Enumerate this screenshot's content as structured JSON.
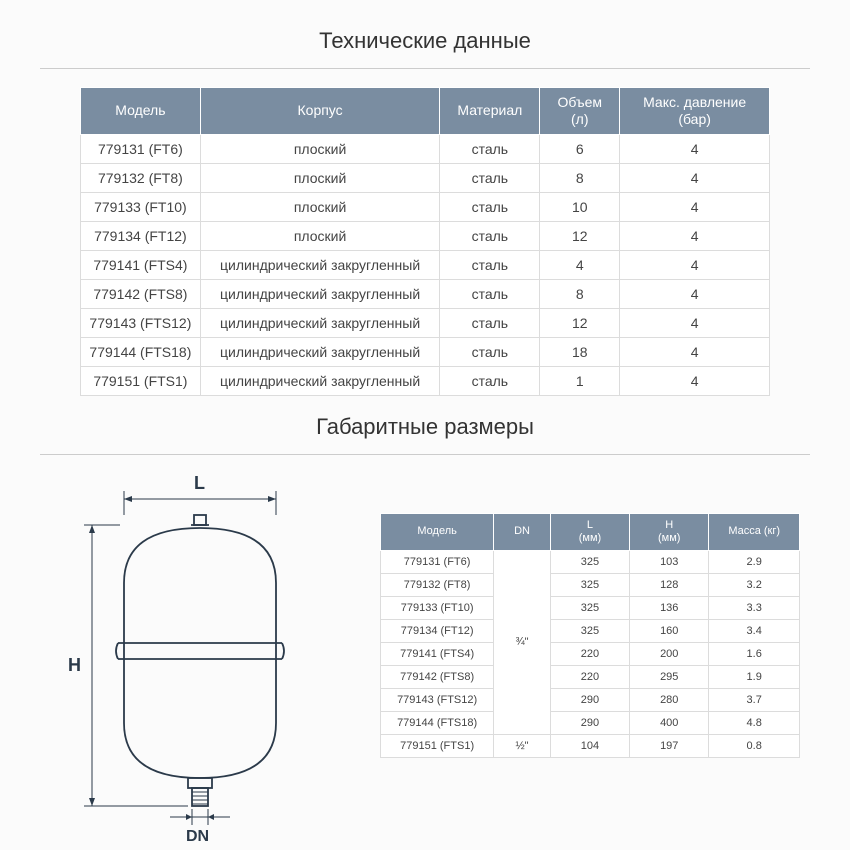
{
  "colors": {
    "header_bg": "#7a8da1",
    "border": "#dcdcdc",
    "text": "#444444",
    "diagram_stroke": "#2b3a4a"
  },
  "section1": {
    "title": "Технические данные"
  },
  "spec_table": {
    "headers": [
      "Модель",
      "Корпус",
      "Материал",
      "Объем\n(л)",
      "Макс. давление\n(бар)"
    ],
    "col_widths": [
      "120px",
      "240px",
      "100px",
      "80px",
      "150px"
    ],
    "rows": [
      [
        "779131 (FT6)",
        "плоский",
        "сталь",
        "6",
        "4"
      ],
      [
        "779132 (FT8)",
        "плоский",
        "сталь",
        "8",
        "4"
      ],
      [
        "779133 (FT10)",
        "плоский",
        "сталь",
        "10",
        "4"
      ],
      [
        "779134 (FT12)",
        "плоский",
        "сталь",
        "12",
        "4"
      ],
      [
        "779141 (FTS4)",
        "цилиндрический закругленный",
        "сталь",
        "4",
        "4"
      ],
      [
        "779142 (FTS8)",
        "цилиндрический закругленный",
        "сталь",
        "8",
        "4"
      ],
      [
        "779143 (FTS12)",
        "цилиндрический закругленный",
        "сталь",
        "12",
        "4"
      ],
      [
        "779144 (FTS18)",
        "цилиндрический закругленный",
        "сталь",
        "18",
        "4"
      ],
      [
        "779151 (FTS1)",
        "цилиндрический закругленный",
        "сталь",
        "1",
        "4"
      ]
    ]
  },
  "section2": {
    "title": "Габаритные размеры"
  },
  "diagram": {
    "label_L": "L",
    "label_H": "H",
    "label_DN": "DN"
  },
  "dims_table": {
    "headers": [
      "Модель",
      "DN",
      "L\n(мм)",
      "H\n(мм)",
      "Масса (кг)"
    ],
    "col_widths": [
      "100px",
      "50px",
      "70px",
      "70px",
      "80px"
    ],
    "dn_span_top": "¾\"",
    "dn_span_bottom": "½\"",
    "rows": [
      [
        "779131 (FT6)",
        "325",
        "103",
        "2.9"
      ],
      [
        "779132 (FT8)",
        "325",
        "128",
        "3.2"
      ],
      [
        "779133 (FT10)",
        "325",
        "136",
        "3.3"
      ],
      [
        "779134 (FT12)",
        "325",
        "160",
        "3.4"
      ],
      [
        "779141 (FTS4)",
        "220",
        "200",
        "1.6"
      ],
      [
        "779142 (FTS8)",
        "220",
        "295",
        "1.9"
      ],
      [
        "779143 (FTS12)",
        "290",
        "280",
        "3.7"
      ],
      [
        "779144 (FTS18)",
        "290",
        "400",
        "4.8"
      ],
      [
        "779151 (FTS1)",
        "104",
        "197",
        "0.8"
      ]
    ]
  }
}
